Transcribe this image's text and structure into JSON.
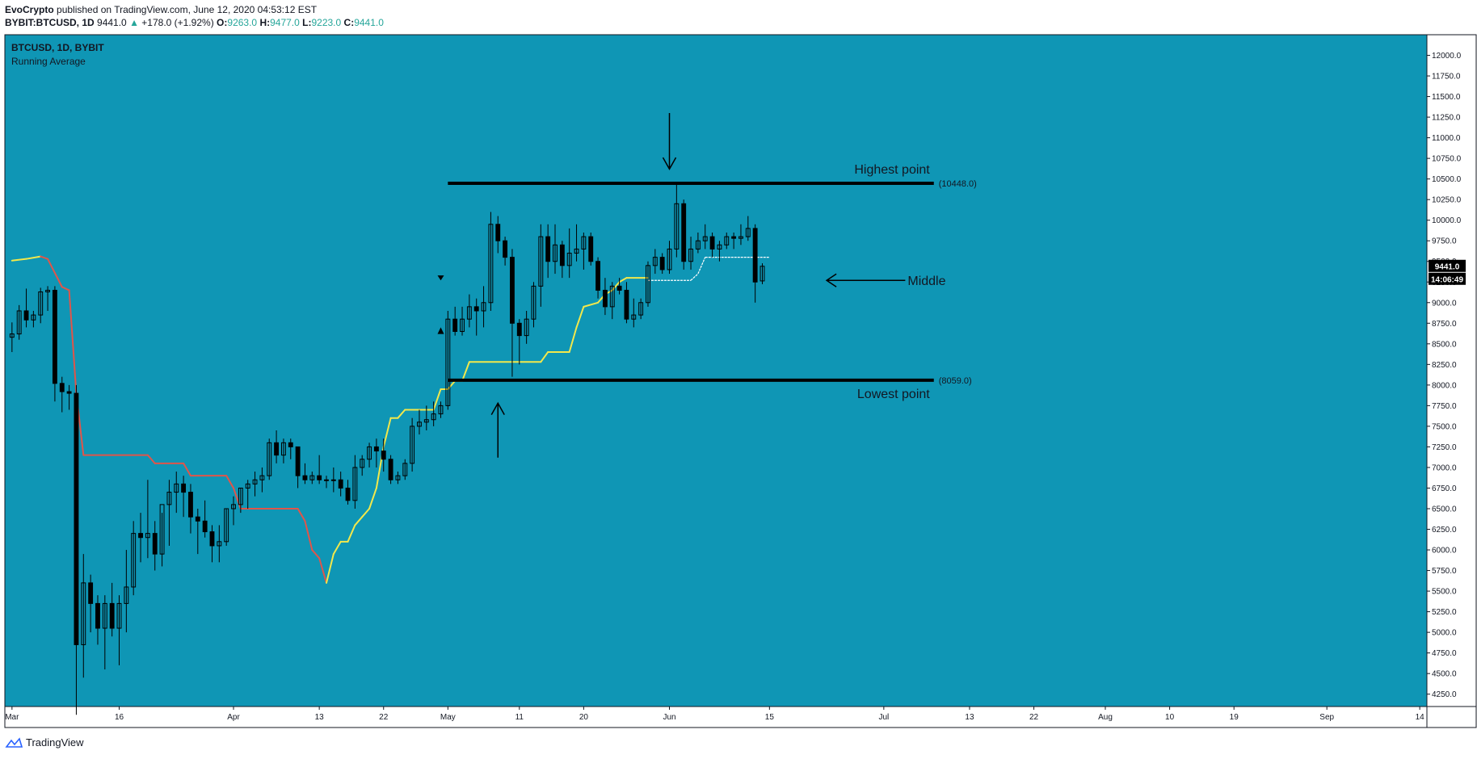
{
  "header": {
    "author": "EvoCrypto",
    "published_text": "published on TradingView.com, June 12, 2020 04:53:12 EST"
  },
  "ohlc_line": {
    "symbol": "BYBIT:BTCUSD, 1D",
    "last": "9441.0",
    "change": "+178.0 (+1.92%)",
    "o_label": "O:",
    "o": "9263.0",
    "h_label": "H:",
    "h": "9477.0",
    "l_label": "L:",
    "l": "9223.0",
    "c_label": "C:",
    "c": "9441.0"
  },
  "footer": {
    "brand": "TradingView"
  },
  "colors": {
    "background": "#0f96b5",
    "candle": "#000000",
    "indicator_down": "#e0554a",
    "indicator_up": "#f2e84b",
    "projection": "#ffffff",
    "price_tag_bg": "#000000"
  },
  "chart_data": {
    "type": "candlestick",
    "legend": [
      "BTCUSD, 1D, BYBIT",
      "Running Average"
    ],
    "ylim": [
      4100,
      12250
    ],
    "y_ticks": [
      "12000.0",
      "11750.0",
      "11500.0",
      "11250.0",
      "11000.0",
      "10750.0",
      "10500.0",
      "10250.0",
      "10000.0",
      "9750.0",
      "9500.0",
      "9250.0",
      "9000.0",
      "8750.0",
      "8500.0",
      "8250.0",
      "8000.0",
      "7750.0",
      "7500.0",
      "7250.0",
      "7000.0",
      "6750.0",
      "6500.0",
      "6250.0",
      "6000.0",
      "5750.0",
      "5500.0",
      "5250.0",
      "5000.0",
      "4750.0",
      "4500.0",
      "4250.0"
    ],
    "x_range_days": [
      -1,
      198
    ],
    "x_ticks": [
      {
        "label": "Mar",
        "day": 0
      },
      {
        "label": "16",
        "day": 15
      },
      {
        "label": "Apr",
        "day": 31
      },
      {
        "label": "13",
        "day": 43
      },
      {
        "label": "22",
        "day": 52
      },
      {
        "label": "May",
        "day": 61
      },
      {
        "label": "11",
        "day": 71
      },
      {
        "label": "20",
        "day": 80
      },
      {
        "label": "Jun",
        "day": 92
      },
      {
        "label": "15",
        "day": 106
      },
      {
        "label": "Jul",
        "day": 122
      },
      {
        "label": "13",
        "day": 134
      },
      {
        "label": "22",
        "day": 143
      },
      {
        "label": "Aug",
        "day": 153
      },
      {
        "label": "10",
        "day": 162
      },
      {
        "label": "19",
        "day": 171
      },
      {
        "label": "Sep",
        "day": 184
      },
      {
        "label": "14",
        "day": 197
      }
    ],
    "candles_start_day": 0,
    "candles_ohlc": [
      [
        8580,
        8760,
        8400,
        8620
      ],
      [
        8620,
        8970,
        8550,
        8900
      ],
      [
        8900,
        9170,
        8700,
        8790
      ],
      [
        8790,
        8900,
        8700,
        8850
      ],
      [
        8850,
        9180,
        8750,
        9130
      ],
      [
        9130,
        9200,
        8900,
        9150
      ],
      [
        9150,
        9200,
        7800,
        8020
      ],
      [
        8020,
        8100,
        7670,
        7920
      ],
      [
        7920,
        8000,
        7700,
        7900
      ],
      [
        7900,
        8000,
        4000,
        4850
      ],
      [
        4850,
        5950,
        4450,
        5600
      ],
      [
        5600,
        5700,
        5000,
        5350
      ],
      [
        5350,
        5450,
        4850,
        5050
      ],
      [
        5050,
        5450,
        4550,
        5350
      ],
      [
        5350,
        5600,
        4950,
        5050
      ],
      [
        5050,
        5450,
        4600,
        5350
      ],
      [
        5350,
        6000,
        5000,
        5550
      ],
      [
        5550,
        6350,
        5450,
        6200
      ],
      [
        6200,
        6450,
        5850,
        6150
      ],
      [
        6150,
        6850,
        5900,
        6200
      ],
      [
        6200,
        6350,
        5750,
        5950
      ],
      [
        5950,
        6450,
        5800,
        6550
      ],
      [
        6550,
        6850,
        6050,
        6700
      ],
      [
        6700,
        6950,
        6450,
        6800
      ],
      [
        6800,
        6900,
        6400,
        6700
      ],
      [
        6700,
        6800,
        6200,
        6400
      ],
      [
        6400,
        6500,
        5950,
        6350
      ],
      [
        6350,
        6600,
        6150,
        6220
      ],
      [
        6220,
        6300,
        5850,
        6050
      ],
      [
        6050,
        6300,
        5850,
        6100
      ],
      [
        6100,
        6500,
        6050,
        6500
      ],
      [
        6500,
        6650,
        6300,
        6550
      ],
      [
        6550,
        6750,
        6450,
        6750
      ],
      [
        6750,
        6850,
        6500,
        6800
      ],
      [
        6800,
        6950,
        6650,
        6850
      ],
      [
        6850,
        7000,
        6700,
        6900
      ],
      [
        6900,
        7350,
        6850,
        7300
      ],
      [
        7300,
        7450,
        7050,
        7150
      ],
      [
        7150,
        7350,
        7050,
        7300
      ],
      [
        7300,
        7350,
        7100,
        7250
      ],
      [
        7250,
        7250,
        6750,
        6900
      ],
      [
        6900,
        7050,
        6800,
        6850
      ],
      [
        6850,
        6950,
        6800,
        6900
      ],
      [
        6900,
        7150,
        6800,
        6850
      ],
      [
        6850,
        6900,
        6750,
        6850
      ],
      [
        6850,
        7000,
        6700,
        6850
      ],
      [
        6850,
        6950,
        6650,
        6750
      ],
      [
        6750,
        6850,
        6550,
        6600
      ],
      [
        6600,
        7150,
        6500,
        7000
      ],
      [
        7000,
        7150,
        6900,
        7100
      ],
      [
        7100,
        7300,
        7000,
        7250
      ],
      [
        7250,
        7350,
        7000,
        7200
      ],
      [
        7200,
        7350,
        6950,
        7100
      ],
      [
        7100,
        7150,
        6800,
        6850
      ],
      [
        6850,
        6950,
        6800,
        6900
      ],
      [
        6900,
        7100,
        6850,
        7050
      ],
      [
        7050,
        7600,
        6950,
        7500
      ],
      [
        7500,
        7700,
        7400,
        7550
      ],
      [
        7550,
        7750,
        7450,
        7580
      ],
      [
        7580,
        7800,
        7500,
        7650
      ],
      [
        7650,
        7800,
        7600,
        7750
      ],
      [
        7750,
        8900,
        7700,
        8800
      ],
      [
        8800,
        8950,
        8600,
        8650
      ],
      [
        8650,
        8950,
        8600,
        8800
      ],
      [
        8800,
        9100,
        8700,
        8950
      ],
      [
        8950,
        9050,
        8600,
        8900
      ],
      [
        8900,
        9200,
        8700,
        9000
      ],
      [
        9000,
        10100,
        8900,
        9950
      ],
      [
        9950,
        10050,
        9600,
        9750
      ],
      [
        9750,
        9800,
        9450,
        9550
      ],
      [
        9550,
        9650,
        8100,
        8750
      ],
      [
        8750,
        8800,
        8250,
        8600
      ],
      [
        8600,
        8900,
        8500,
        8800
      ],
      [
        8800,
        9250,
        8700,
        9200
      ],
      [
        9200,
        9950,
        8950,
        9800
      ],
      [
        9800,
        9950,
        9300,
        9500
      ],
      [
        9500,
        9950,
        9350,
        9700
      ],
      [
        9700,
        9750,
        9300,
        9450
      ],
      [
        9450,
        9900,
        9300,
        9600
      ],
      [
        9600,
        9950,
        9500,
        9650
      ],
      [
        9650,
        9850,
        9400,
        9800
      ],
      [
        9800,
        9850,
        9450,
        9500
      ],
      [
        9500,
        9550,
        9050,
        9150
      ],
      [
        9150,
        9300,
        8850,
        8950
      ],
      [
        8950,
        9250,
        8800,
        9200
      ],
      [
        9200,
        9300,
        9100,
        9150
      ],
      [
        9150,
        9250,
        8750,
        8800
      ],
      [
        8800,
        9050,
        8700,
        8850
      ],
      [
        8850,
        9050,
        8800,
        9000
      ],
      [
        9000,
        9500,
        8950,
        9450
      ],
      [
        9450,
        9650,
        9350,
        9550
      ],
      [
        9550,
        9600,
        9350,
        9400
      ],
      [
        9400,
        9750,
        9350,
        9650
      ],
      [
        9650,
        10450,
        9550,
        10200
      ],
      [
        10200,
        10250,
        9400,
        9500
      ],
      [
        9500,
        9800,
        9400,
        9650
      ],
      [
        9650,
        9850,
        9600,
        9750
      ],
      [
        9750,
        9950,
        9650,
        9800
      ],
      [
        9800,
        9850,
        9550,
        9650
      ],
      [
        9650,
        9750,
        9500,
        9700
      ],
      [
        9700,
        9850,
        9650,
        9800
      ],
      [
        9800,
        9850,
        9650,
        9780
      ],
      [
        9780,
        9950,
        9700,
        9800
      ],
      [
        9800,
        10050,
        9750,
        9900
      ],
      [
        9900,
        9950,
        9000,
        9250
      ],
      [
        9263,
        9477,
        9223,
        9441
      ]
    ],
    "running_average": [
      {
        "day": 0,
        "value": 9510,
        "color": "up"
      },
      {
        "day": 2,
        "value": 9530,
        "color": "up"
      },
      {
        "day": 4,
        "value": 9560,
        "color": "up"
      },
      {
        "day": 5,
        "value": 9530,
        "color": "down"
      },
      {
        "day": 7,
        "value": 9190,
        "color": "down"
      },
      {
        "day": 8,
        "value": 9150,
        "color": "down"
      },
      {
        "day": 9,
        "value": 7900,
        "color": "down"
      },
      {
        "day": 10,
        "value": 7150,
        "color": "down"
      },
      {
        "day": 19,
        "value": 7150,
        "color": "down"
      },
      {
        "day": 20,
        "value": 7050,
        "color": "down"
      },
      {
        "day": 24,
        "value": 7050,
        "color": "down"
      },
      {
        "day": 25,
        "value": 6900,
        "color": "down"
      },
      {
        "day": 30,
        "value": 6900,
        "color": "down"
      },
      {
        "day": 31,
        "value": 6750,
        "color": "down"
      },
      {
        "day": 32,
        "value": 6500,
        "color": "down"
      },
      {
        "day": 40,
        "value": 6500,
        "color": "down"
      },
      {
        "day": 41,
        "value": 6350,
        "color": "down"
      },
      {
        "day": 42,
        "value": 6000,
        "color": "down"
      },
      {
        "day": 43,
        "value": 5900,
        "color": "down"
      },
      {
        "day": 44,
        "value": 5600,
        "color": "down"
      },
      {
        "day": 45,
        "value": 5950,
        "color": "up"
      },
      {
        "day": 46,
        "value": 6100,
        "color": "up"
      },
      {
        "day": 47,
        "value": 6100,
        "color": "up"
      },
      {
        "day": 48,
        "value": 6300,
        "color": "up"
      },
      {
        "day": 49,
        "value": 6400,
        "color": "up"
      },
      {
        "day": 50,
        "value": 6500,
        "color": "up"
      },
      {
        "day": 51,
        "value": 6750,
        "color": "up"
      },
      {
        "day": 52,
        "value": 7250,
        "color": "up"
      },
      {
        "day": 53,
        "value": 7600,
        "color": "up"
      },
      {
        "day": 54,
        "value": 7600,
        "color": "up"
      },
      {
        "day": 55,
        "value": 7700,
        "color": "up"
      },
      {
        "day": 59,
        "value": 7700,
        "color": "up"
      },
      {
        "day": 60,
        "value": 7950,
        "color": "up"
      },
      {
        "day": 61,
        "value": 7950,
        "color": "up"
      },
      {
        "day": 62,
        "value": 8050,
        "color": "up"
      },
      {
        "day": 63,
        "value": 8050,
        "color": "up"
      },
      {
        "day": 64,
        "value": 8280,
        "color": "up"
      },
      {
        "day": 74,
        "value": 8280,
        "color": "up"
      },
      {
        "day": 75,
        "value": 8400,
        "color": "up"
      },
      {
        "day": 78,
        "value": 8400,
        "color": "up"
      },
      {
        "day": 79,
        "value": 8700,
        "color": "up"
      },
      {
        "day": 80,
        "value": 8950,
        "color": "up"
      },
      {
        "day": 82,
        "value": 9000,
        "color": "up"
      },
      {
        "day": 83,
        "value": 9100,
        "color": "up"
      },
      {
        "day": 84,
        "value": 9150,
        "color": "up"
      },
      {
        "day": 85,
        "value": 9250,
        "color": "up"
      },
      {
        "day": 86,
        "value": 9300,
        "color": "up"
      },
      {
        "day": 89,
        "value": 9300,
        "color": "up"
      }
    ],
    "projection": [
      {
        "day": 89,
        "value": 9270
      },
      {
        "day": 95,
        "value": 9270
      },
      {
        "day": 96,
        "value": 9350
      },
      {
        "day": 97,
        "value": 9550
      },
      {
        "day": 106,
        "value": 9550
      }
    ],
    "annotations": {
      "highest_value": 10448,
      "highest_label": "Highest point",
      "highest_tag": "(10448.0)",
      "lowest_value": 8059,
      "lowest_label": "Lowest point",
      "lowest_tag": "(8059.0)",
      "middle_label": "Middle",
      "last_price": "9441.0",
      "countdown": "14:06:49"
    }
  }
}
